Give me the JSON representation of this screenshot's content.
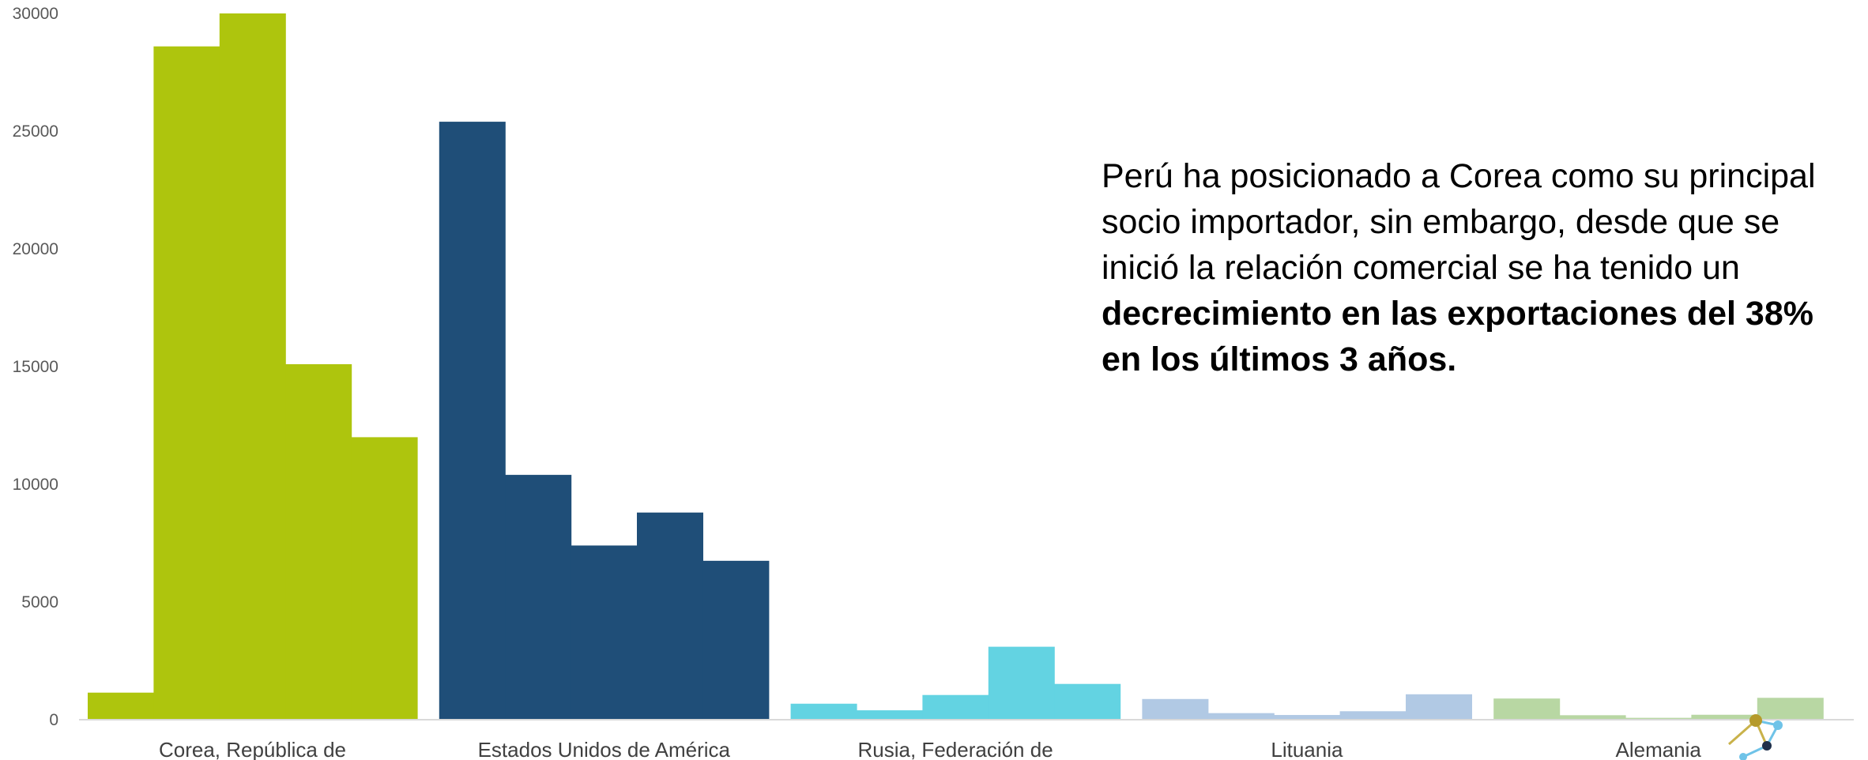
{
  "chart_data": {
    "type": "bar",
    "title": "",
    "xlabel": "",
    "ylabel": "",
    "ylim": [
      0,
      30000
    ],
    "yticks": [
      0,
      5000,
      10000,
      15000,
      20000,
      25000,
      30000
    ],
    "grid": false,
    "legend": "none",
    "groups": [
      {
        "category": "Corea, República de",
        "color": "#aec50d",
        "values": [
          1150,
          28600,
          30000,
          15100,
          12000
        ]
      },
      {
        "category": "Estados Unidos de América",
        "color": "#1f4e78",
        "values": [
          25400,
          10400,
          7400,
          8800,
          6750
        ]
      },
      {
        "category": "Rusia, Federación de",
        "color": "#63d3e2",
        "values": [
          680,
          400,
          1050,
          3100,
          1520
        ]
      },
      {
        "category": "Lituania",
        "color": "#b1c9e4",
        "values": [
          880,
          280,
          200,
          360,
          1080
        ]
      },
      {
        "category": "Alemania",
        "color": "#b8d7a3",
        "values": [
          900,
          190,
          80,
          210,
          930
        ]
      }
    ]
  },
  "annotation": {
    "normal": "Perú ha posicionado a Corea como su principal socio importador, sin embargo, desde que se inició la relación comercial se ha tenido un ",
    "bold": "decrecimiento en las exportaciones del 38% en los últimos 3 años."
  },
  "logo_icon": "molecule-logo-icon"
}
